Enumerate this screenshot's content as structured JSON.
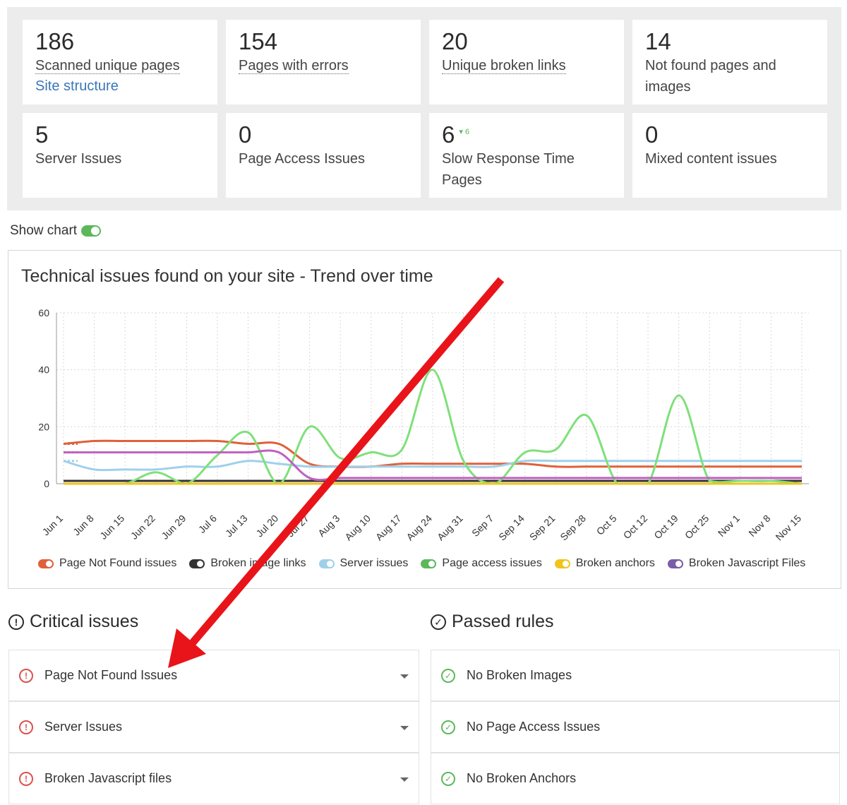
{
  "stats": [
    {
      "value": "186",
      "label": "Scanned unique pages",
      "link": "Site structure"
    },
    {
      "value": "154",
      "label": "Pages with errors"
    },
    {
      "value": "20",
      "label": "Unique broken links"
    },
    {
      "value": "14",
      "label": "Not found pages and images"
    },
    {
      "value": "5",
      "label": "Server Issues"
    },
    {
      "value": "0",
      "label": "Page Access Issues"
    },
    {
      "value": "6",
      "label": "Slow Response Time Pages",
      "delta": "6"
    },
    {
      "value": "0",
      "label": "Mixed content issues"
    }
  ],
  "show_chart": {
    "label": "Show chart",
    "enabled": true
  },
  "chart_data": {
    "type": "line",
    "title": "Technical issues found on your site - Trend over time",
    "ylim": [
      0,
      60
    ],
    "yticks": [
      "0",
      "20",
      "40",
      "60"
    ],
    "categories": [
      "Jun 1",
      "Jun 8",
      "Jun 15",
      "Jun 22",
      "Jun 29",
      "Jul 6",
      "Jul 13",
      "Jul 20",
      "Jul 27",
      "Aug 3",
      "Aug 10",
      "Aug 17",
      "Aug 24",
      "Aug 31",
      "Sep 7",
      "Sep 14",
      "Sep 21",
      "Sep 28",
      "Oct 5",
      "Oct 12",
      "Oct 19",
      "Oct 25",
      "Nov 1",
      "Nov 8",
      "Nov 15"
    ],
    "grid": true,
    "legend_position": "bottom",
    "series": [
      {
        "name": "Page Not Found issues",
        "color": "#e0603a",
        "values": [
          14,
          15,
          15,
          15,
          15,
          15,
          14,
          14,
          7,
          6,
          6,
          7,
          7,
          7,
          7,
          7,
          6,
          6,
          6,
          6,
          6,
          6,
          6,
          6,
          6
        ]
      },
      {
        "name": "Broken image links",
        "color": "#333333",
        "values": [
          1,
          1,
          1,
          1,
          1,
          1,
          1,
          1,
          1,
          1,
          1,
          1,
          1,
          1,
          1,
          1,
          1,
          1,
          1,
          1,
          1,
          1,
          1,
          1,
          1
        ]
      },
      {
        "name": "Server issues",
        "color": "#9fd0ea",
        "values": [
          8,
          5,
          5,
          5,
          6,
          6,
          8,
          7,
          6,
          6,
          6,
          6,
          6,
          6,
          6,
          8,
          8,
          8,
          8,
          8,
          8,
          8,
          8,
          8,
          8
        ]
      },
      {
        "name": "Page access issues",
        "color": "#7fe07a",
        "values": [
          0,
          0,
          0,
          4,
          0,
          10,
          18,
          0,
          20,
          9,
          11,
          12,
          40,
          8,
          0,
          11,
          12,
          24,
          0,
          0,
          31,
          1,
          1,
          1,
          0
        ]
      },
      {
        "name": "Broken anchors",
        "color": "#f0c419",
        "values": [
          0,
          0,
          0,
          0,
          0,
          0,
          0,
          0,
          0,
          0,
          0,
          0,
          0,
          0,
          0,
          0,
          0,
          0,
          0,
          0,
          0,
          0,
          0,
          0,
          0
        ]
      },
      {
        "name": "Broken Javascript Files",
        "color": "#c060c0",
        "values": [
          11,
          11,
          11,
          11,
          11,
          11,
          11,
          11,
          2,
          2,
          2,
          2,
          2,
          2,
          2,
          2,
          2,
          2,
          2,
          2,
          2,
          2,
          2,
          2,
          2
        ]
      }
    ]
  },
  "legend_colors": [
    "#e0603a",
    "#333333",
    "#9fd0ea",
    "#5cb85c",
    "#f0c419",
    "#7a5ca8"
  ],
  "critical": {
    "title": "Critical issues",
    "items": [
      "Page Not Found Issues",
      "Server Issues",
      "Broken Javascript files"
    ]
  },
  "passed": {
    "title": "Passed rules",
    "items": [
      "No Broken Images",
      "No Page Access Issues",
      "No Broken Anchors"
    ]
  },
  "icons": {
    "error": "exclamation-circle-icon",
    "ok": "check-circle-icon"
  }
}
